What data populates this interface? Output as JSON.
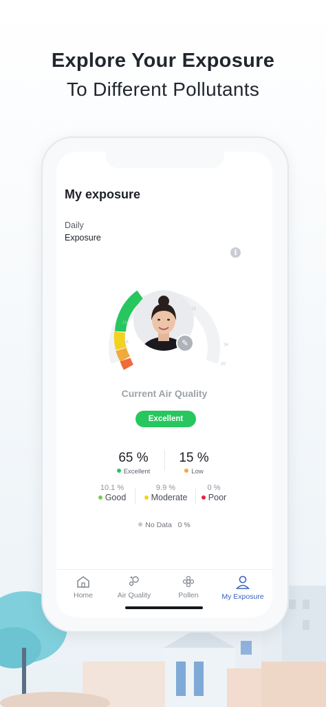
{
  "headline": {
    "line1": "Explore Your Exposure",
    "line2": "To Different Pollutants"
  },
  "screen": {
    "title": "My exposure",
    "period": "Daily",
    "metric": "Exposure",
    "info_icon": "info-icon",
    "gauge_ticks": [
      "21",
      "22",
      "23",
      "24",
      "20",
      "18",
      "19"
    ],
    "air_quality_label": "Current Air Quality",
    "air_quality_badge": "Excellent",
    "colors": {
      "excellent": "#27c65f",
      "low": "#f2a93b",
      "good": "#7cc94d",
      "moderate": "#f3d21f",
      "poor": "#e4243a",
      "no_data": "#c4c7cc",
      "accent": "#3a63c0"
    },
    "primary_stats": [
      {
        "value": "65 %",
        "label": "Excellent"
      },
      {
        "value": "15 %",
        "label": "Low"
      }
    ],
    "secondary_stats": [
      {
        "value": "10.1 %",
        "label": "Good"
      },
      {
        "value": "9.9 %",
        "label": "Moderate"
      },
      {
        "value": "0 %",
        "label": "Poor"
      }
    ],
    "no_data": {
      "label": "No Data",
      "value": "0 %"
    }
  },
  "tabbar": {
    "items": [
      {
        "label": "Home",
        "icon": "home-icon"
      },
      {
        "label": "Air Quality",
        "icon": "air-quality-icon"
      },
      {
        "label": "Pollen",
        "icon": "pollen-icon"
      },
      {
        "label": "My Exposure",
        "icon": "user-icon",
        "active": true
      }
    ]
  }
}
